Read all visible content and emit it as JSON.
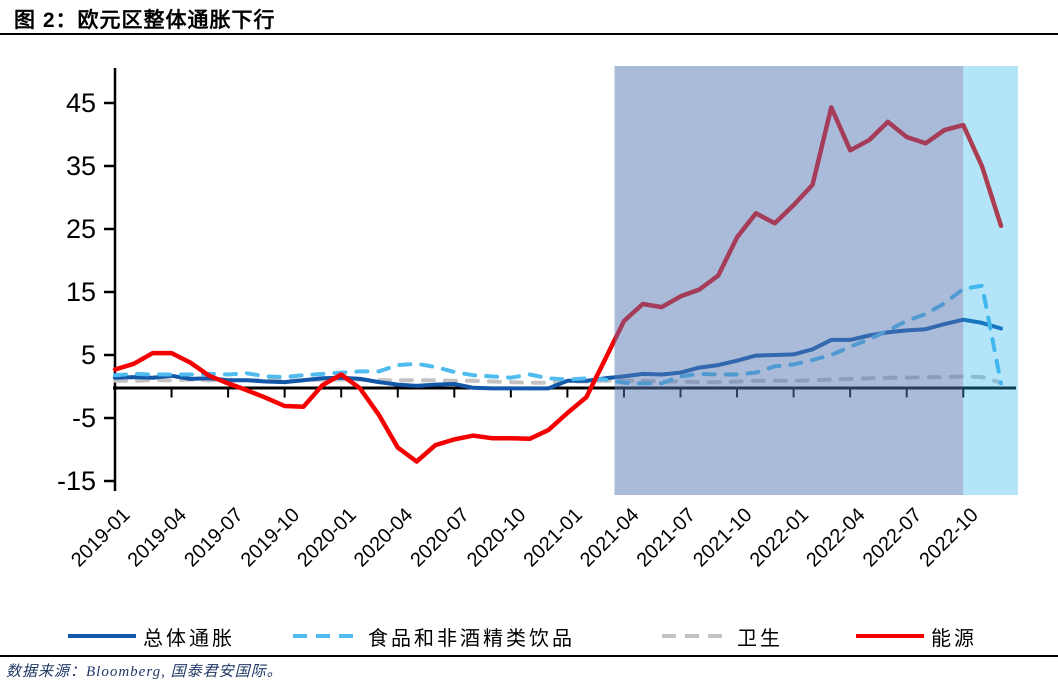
{
  "title": "图 2：欧元区整体通胀下行",
  "source_note": "数据来源：Bloomberg, 国泰君安国际。",
  "legend": {
    "items": [
      {
        "label": "总体通胀",
        "color": "#1257A8",
        "dash": false
      },
      {
        "label": "食品和非酒精类饮品",
        "color": "#4FBBEE",
        "dash": true
      },
      {
        "label": "卫生",
        "color": "#C3C3C3",
        "dash": true
      },
      {
        "label": "能源",
        "color": "#F40000",
        "dash": false
      }
    ]
  },
  "chart_data": {
    "type": "line",
    "title": "",
    "xlabel": "",
    "ylabel": "",
    "ylim": [
      -15,
      50
    ],
    "yticks": [
      45,
      35,
      25,
      15,
      5,
      -5,
      -15
    ],
    "grid": false,
    "legend_position": "bottom",
    "x": [
      "2019-01",
      "2019-02",
      "2019-03",
      "2019-04",
      "2019-05",
      "2019-06",
      "2019-07",
      "2019-08",
      "2019-09",
      "2019-10",
      "2019-11",
      "2019-12",
      "2020-01",
      "2020-02",
      "2020-03",
      "2020-04",
      "2020-05",
      "2020-06",
      "2020-07",
      "2020-08",
      "2020-09",
      "2020-10",
      "2020-11",
      "2020-12",
      "2021-01",
      "2021-02",
      "2021-03",
      "2021-04",
      "2021-05",
      "2021-06",
      "2021-07",
      "2021-08",
      "2021-09",
      "2021-10",
      "2021-11",
      "2021-12",
      "2022-01",
      "2022-02",
      "2022-03",
      "2022-04",
      "2022-05",
      "2022-06",
      "2022-07",
      "2022-08",
      "2022-09",
      "2022-10",
      "2022-11",
      "2022-12"
    ],
    "x_tick_labels": [
      "2019-01",
      "2019-04",
      "2019-07",
      "2019-10",
      "2020-01",
      "2020-04",
      "2020-07",
      "2020-10",
      "2021-01",
      "2021-04",
      "2021-07",
      "2021-10",
      "2022-01",
      "2022-04",
      "2022-07",
      "2022-10"
    ],
    "series": [
      {
        "name": "总体通胀",
        "color": "#1257A8",
        "dash": false,
        "width": 4,
        "values": [
          1.4,
          1.5,
          1.4,
          1.7,
          1.2,
          1.3,
          1.0,
          1.0,
          0.8,
          0.7,
          1.0,
          1.3,
          1.4,
          1.2,
          0.7,
          0.3,
          0.1,
          0.3,
          0.4,
          -0.2,
          -0.3,
          -0.3,
          -0.3,
          -0.3,
          0.9,
          0.9,
          1.3,
          1.6,
          2.0,
          1.9,
          2.2,
          3.0,
          3.4,
          4.1,
          4.9,
          5.0,
          5.1,
          5.9,
          7.4,
          7.4,
          8.1,
          8.6,
          8.9,
          9.1,
          9.9,
          10.6,
          10.1,
          9.2
        ]
      },
      {
        "name": "食品和非酒精类饮品",
        "color": "#4FBBEE",
        "dash": true,
        "width": 4,
        "values": [
          1.8,
          2.0,
          1.9,
          1.9,
          1.9,
          2.0,
          1.9,
          2.1,
          1.6,
          1.5,
          1.8,
          2.0,
          2.2,
          2.4,
          2.4,
          3.4,
          3.6,
          3.1,
          2.3,
          1.8,
          1.6,
          1.4,
          1.9,
          1.3,
          1.1,
          1.3,
          1.1,
          0.6,
          0.5,
          0.5,
          1.6,
          2.0,
          1.9,
          1.9,
          2.2,
          3.2,
          3.5,
          4.2,
          5.0,
          6.3,
          7.5,
          8.9,
          10.4,
          11.5,
          13.2,
          15.5,
          16.0,
          0.5
        ]
      },
      {
        "name": "卫生",
        "color": "#C3C3C3",
        "dash": true,
        "width": 4,
        "values": [
          0.9,
          0.9,
          1.0,
          1.0,
          1.1,
          1.0,
          1.0,
          1.0,
          1.0,
          0.9,
          1.0,
          1.1,
          1.1,
          1.1,
          1.0,
          1.0,
          1.0,
          1.0,
          0.9,
          0.9,
          0.8,
          0.7,
          0.6,
          0.6,
          0.8,
          0.8,
          0.9,
          0.9,
          0.9,
          0.8,
          0.8,
          0.7,
          0.7,
          0.8,
          0.9,
          0.9,
          0.9,
          1.0,
          1.1,
          1.2,
          1.3,
          1.4,
          1.4,
          1.5,
          1.5,
          1.6,
          1.5,
          0.6
        ]
      },
      {
        "name": "能源",
        "color": "#F40000",
        "dash": false,
        "width": 4.5,
        "values": [
          2.7,
          3.6,
          5.3,
          5.3,
          3.8,
          1.7,
          0.5,
          -0.6,
          -1.8,
          -3.1,
          -3.2,
          0.2,
          1.9,
          -0.3,
          -4.5,
          -9.7,
          -11.9,
          -9.3,
          -8.4,
          -7.8,
          -8.2,
          -8.2,
          -8.3,
          -6.9,
          -4.2,
          -1.7,
          4.3,
          10.4,
          13.1,
          12.6,
          14.3,
          15.4,
          17.6,
          23.7,
          27.5,
          25.9,
          28.8,
          32.0,
          44.3,
          37.5,
          39.1,
          42.0,
          39.6,
          38.6,
          40.7,
          41.5,
          34.9,
          25.5
        ]
      }
    ],
    "draw_order": [
      2,
      0,
      1,
      3
    ],
    "highlight_bands": [
      {
        "from_month_index": 26.5,
        "to_month_index": 45,
        "color": "rgba(83,120,179,0.50)"
      },
      {
        "from_month_index": 45,
        "to_month_index": 47.9,
        "color": "rgba(37,178,231,0.35)"
      }
    ]
  }
}
